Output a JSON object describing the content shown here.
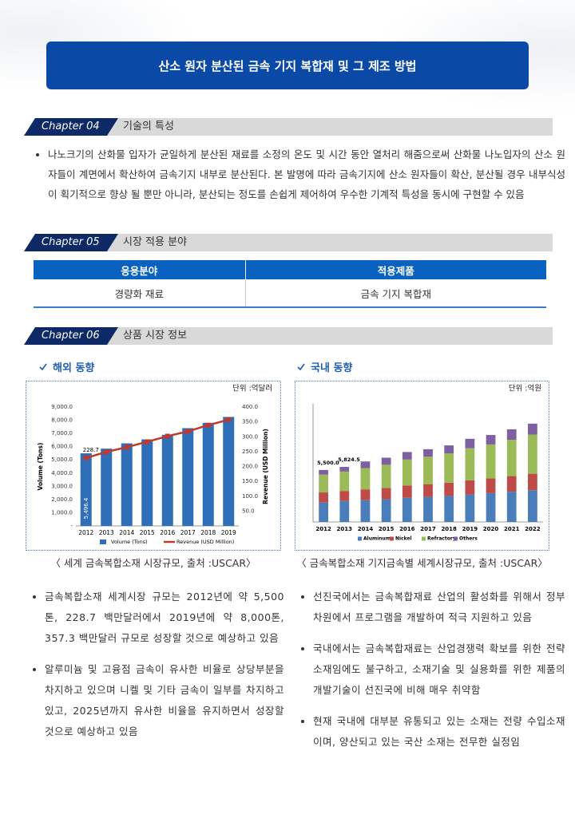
{
  "header": {
    "title": "산소 원자 분산된 금속 기지 복합재 및 그 제조 방법"
  },
  "sections": [
    {
      "chapter": "Chapter 04",
      "title": "기술의 특성",
      "bullets": [
        "나노크기의 산화물 입자가 균일하게 분산된 재료를 소정의 온도 및 시간 동안 열처리 해줌으로써 산화물 나노입자의 산소 원자들이 계면에서 확산하여 금속기지 내부로 분산된다. 본 발명에 따라 금속기지에 산소 원자들이 확산, 분산될 경우 내부식성이 획기적으로 향상 될 뿐만 아니라, 분산되는 정도를 손쉽게 제어하여 우수한 기계적 특성을 동시에 구현할 수 있음"
      ]
    },
    {
      "chapter": "Chapter 05",
      "title": "시장 적용 분야",
      "table": {
        "header": [
          "응용분야",
          "적용제품"
        ],
        "rows": [
          [
            "경량화 재료",
            "금속 기지 복합재"
          ]
        ]
      }
    },
    {
      "chapter": "Chapter 06",
      "title": "상품 시장 정보",
      "columns": [
        {
          "heading": "해외 동향",
          "unit": "단위 :억달러",
          "caption": "〈 세계 금속복합소재 시장규모, 출처 :USCAR〉",
          "chart_data": {
            "type": "bar_line",
            "categories": [
              "2012",
              "2013",
              "2014",
              "2015",
              "2016",
              "2017",
              "2018",
              "2019"
            ],
            "ylabel": "Volume (Tons)",
            "y2label": "Revenue (USD Million)",
            "ylim": [
              0,
              9000
            ],
            "yticks": [
              {
                "value": 0,
                "label": "-"
              },
              {
                "value": 1000,
                "label": "1,000.0"
              },
              {
                "value": 2000,
                "label": "2,000.0"
              },
              {
                "value": 3000,
                "label": "3,000.0"
              },
              {
                "value": 4000,
                "label": "4,000.0"
              },
              {
                "value": 5000,
                "label": "5,000.0"
              },
              {
                "value": 6000,
                "label": "6,000.0"
              },
              {
                "value": 7000,
                "label": "7,000.0"
              },
              {
                "value": 8000,
                "label": "8,000.0"
              },
              {
                "value": 9000,
                "label": "9,000.0"
              }
            ],
            "y2lim": [
              0,
              400
            ],
            "y2ticks": [
              {
                "value": 50,
                "label": "50.0"
              },
              {
                "value": 100,
                "label": "100.0"
              },
              {
                "value": 150,
                "label": "150.0"
              },
              {
                "value": 200,
                "label": "200.0"
              },
              {
                "value": 250,
                "label": "250.0"
              },
              {
                "value": 300,
                "label": "300.0"
              },
              {
                "value": 350,
                "label": "350.0"
              },
              {
                "value": 400,
                "label": "400.0"
              }
            ],
            "series": [
              {
                "name": "Volume (Tons)",
                "type": "bar",
                "color": "#2f6fb9",
                "values": [
                  5496.4,
                  5850,
                  6250,
                  6550,
                  6900,
                  7400,
                  7800,
                  8250
                ],
                "value_labels": [
                  "5,496.4",
                  null,
                  null,
                  null,
                  null,
                  null,
                  null,
                  null
                ]
              },
              {
                "name": "Revenue (USD Million)",
                "type": "line",
                "axis": "y2",
                "color": "#c0392b",
                "values": [
                  228.7,
                  249,
                  265,
                  283,
                  302,
                  318,
                  339,
                  357.3
                ],
                "value_labels": [
                  "228.7",
                  null,
                  null,
                  null,
                  null,
                  null,
                  null,
                  null
                ]
              }
            ]
          },
          "bullets": [
            "금속복합소재 세계시장 규모는 2012년에 약 5,500톤, 228.7 백만달러에서 2019년에 약 8,000톤, 357.3 백만달러 규모로 성장할 것으로 예상하고 있음",
            "알루미늄 및 고융점 금속이 유사한 비율로 상당부분을 차지하고 있으며 니켈 및 기타 금속이 일부를 차지하고 있고, 2025년까지 유사한 비율을 유지하면서 성장할 것으로 예상하고 있음"
          ]
        },
        {
          "heading": "국내 동향",
          "unit": "단위 :억원",
          "caption": "〈 금속복합소재 기지금속별 세계시장규모, 출처 :USCAR〉",
          "chart_data": {
            "type": "stacked_bar",
            "categories": [
              "2012",
              "2013",
              "2014",
              "2015",
              "2016",
              "2017",
              "2018",
              "2019",
              "2020",
              "2021",
              "2022"
            ],
            "ylim": [
              0,
              12500
            ],
            "series": [
              {
                "name": "Aluminum",
                "color": "#4a7ebb",
                "values": [
                  2050,
                  2215,
                  2300,
                  2400,
                  2550,
                  2650,
                  2750,
                  2900,
                  3050,
                  3200,
                  3350
                ]
              },
              {
                "name": "Nickel",
                "color": "#be4b48",
                "values": [
                  1070,
                  1065,
                  1150,
                  1200,
                  1300,
                  1350,
                  1400,
                  1500,
                  1550,
                  1650,
                  1750
                ]
              },
              {
                "name": "Refractory",
                "color": "#9bbb59",
                "values": [
                  1890,
                  2050,
                  2250,
                  2450,
                  2750,
                  2900,
                  3100,
                  3400,
                  3600,
                  3850,
                  4150
                ]
              },
              {
                "name": "Others",
                "color": "#7d60a0",
                "values": [
                  490,
                  494.5,
                  700,
                  750,
                  800,
                  800,
                  850,
                  1000,
                  1000,
                  1100,
                  1150
                ]
              }
            ],
            "value_labels": [
              "5,500.0",
              "5,824.5",
              null,
              null,
              null,
              null,
              null,
              null,
              null,
              null,
              null
            ]
          },
          "bullets": [
            "선진국에서는 금속복합재료 산업의 활성화를 위해서 정부 차원에서 프로그램을 개발하여 적극 지원하고 있음",
            "국내에서는 금속복합재료는 산업경쟁력 확보를 위한 전략소재임에도 불구하고, 소재기술 및 실용화를 위한 제품의 개발기술이 선진국에 비해 매우 취약함",
            "현재 국내에 대부분 유통되고 있는 소재는 전량 수입소재이며, 양산되고 있는 국산 소재는 전무한 실정임"
          ]
        }
      ]
    }
  ]
}
